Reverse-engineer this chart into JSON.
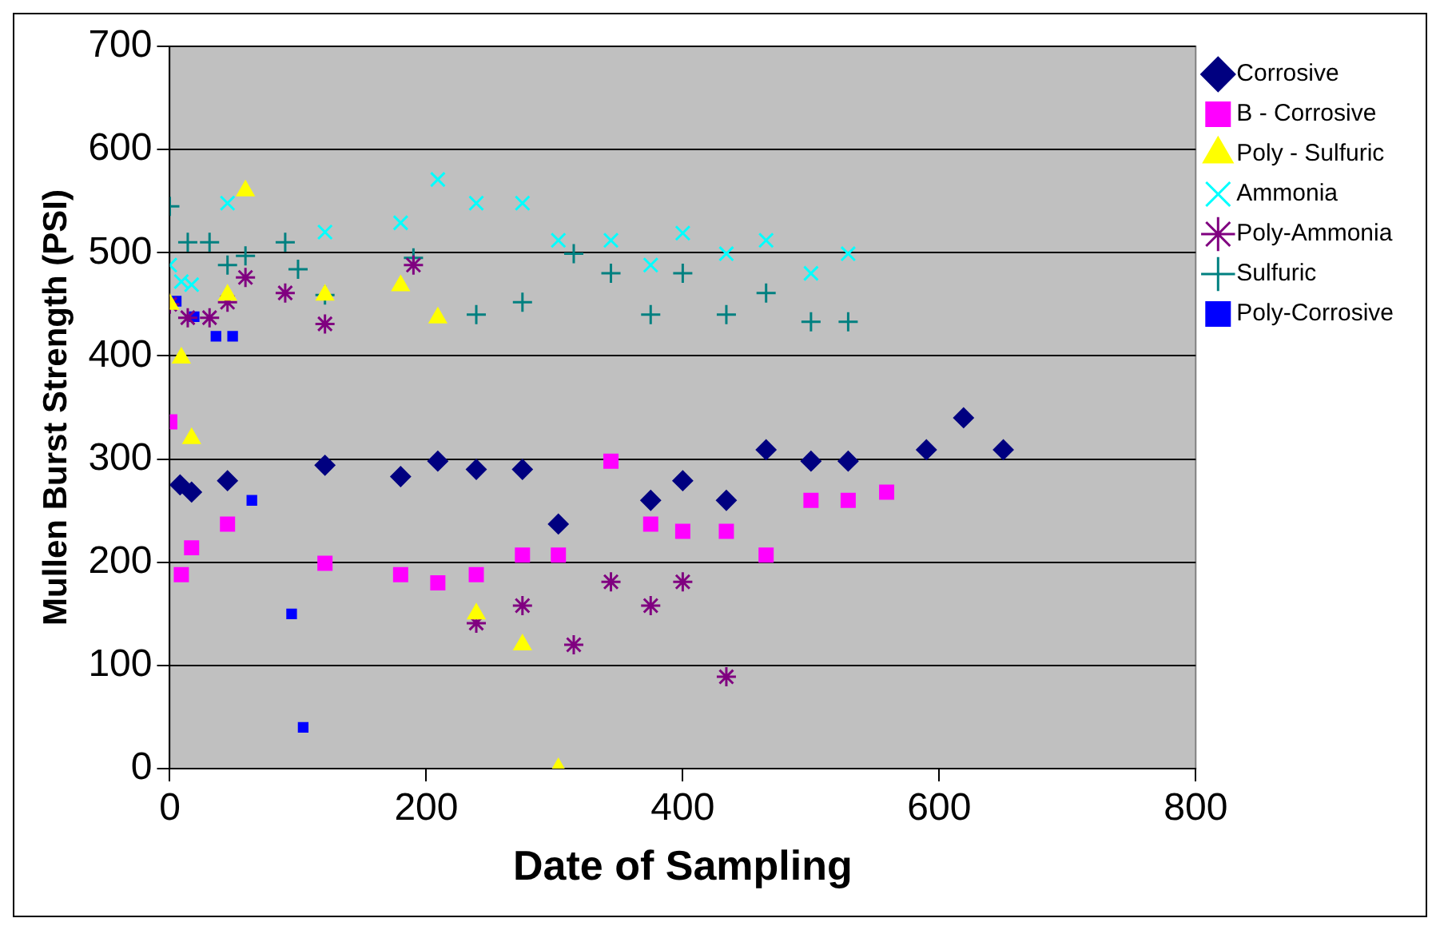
{
  "chart_data": {
    "type": "scatter",
    "xlabel": "Date of Sampling",
    "ylabel": "Mullen Burst Strength (PSI)",
    "xlim": [
      0,
      800
    ],
    "xticks": [
      0,
      200,
      400,
      600,
      800
    ],
    "ylim": [
      0,
      700
    ],
    "yticks": [
      0,
      100,
      200,
      300,
      400,
      500,
      600,
      700
    ],
    "grid": "y",
    "legend": "top right",
    "series": [
      {
        "name": "Corrosive",
        "color": "#000080",
        "marker": "diamond",
        "x": [
          8,
          17,
          45,
          121,
          180,
          209,
          239,
          275,
          303,
          375,
          400,
          434,
          465,
          500,
          529,
          590,
          619,
          650
        ],
        "values": [
          275,
          268,
          279,
          294,
          283,
          298,
          290,
          290,
          237,
          260,
          279,
          260,
          309,
          298,
          298,
          309,
          340,
          309
        ]
      },
      {
        "name": "B - Corrosive",
        "color": "#ff00ff",
        "marker": "square",
        "x": [
          0,
          9,
          17,
          45,
          121,
          180,
          209,
          239,
          275,
          303,
          344,
          375,
          400,
          434,
          465,
          500,
          529,
          559
        ],
        "values": [
          336,
          188,
          214,
          237,
          199,
          188,
          180,
          188,
          207,
          207,
          298,
          237,
          230,
          230,
          207,
          260,
          260,
          268
        ]
      },
      {
        "name": "Poly - Sulfuric",
        "color": "#ffff00",
        "marker": "triangle",
        "x": [
          0,
          9,
          17,
          45,
          59,
          121,
          180,
          209,
          239,
          275,
          303
        ],
        "values": [
          450,
          398,
          320,
          459,
          560,
          459,
          468,
          437,
          150,
          120,
          0
        ]
      },
      {
        "name": "Ammonia",
        "color": "#00ffff",
        "marker": "x",
        "x": [
          0,
          9,
          17,
          45,
          121,
          180,
          209,
          239,
          275,
          303,
          344,
          375,
          400,
          434,
          465,
          500,
          529
        ],
        "values": [
          488,
          472,
          469,
          548,
          520,
          529,
          571,
          548,
          548,
          512,
          512,
          488,
          519,
          499,
          512,
          480,
          499
        ]
      },
      {
        "name": "Poly-Ammonia",
        "color": "#800080",
        "x": [
          0,
          14,
          31,
          45,
          59,
          90,
          121,
          190,
          239,
          275,
          315,
          344,
          375,
          400,
          434
        ],
        "values": [
          450,
          437,
          437,
          452,
          476,
          461,
          431,
          488,
          141,
          158,
          120,
          181,
          158,
          181,
          89
        ]
      },
      {
        "name": "Sulfuric",
        "color": "#008080",
        "marker": "cross",
        "x": [
          0,
          14,
          31,
          45,
          59,
          90,
          100,
          121,
          190,
          239,
          275,
          315,
          344,
          375,
          400,
          434,
          465,
          500,
          529
        ],
        "values": [
          545,
          510,
          510,
          488,
          497,
          510,
          484,
          459,
          495,
          440,
          452,
          499,
          480,
          440,
          480,
          440,
          461,
          433,
          433
        ]
      },
      {
        "name": "Poly-Corrosive",
        "color": "#0000ff",
        "marker": "square",
        "x": [
          5,
          19,
          36,
          49,
          64,
          95,
          104
        ],
        "values": [
          453,
          438,
          419,
          419,
          260,
          150,
          40
        ]
      }
    ]
  }
}
